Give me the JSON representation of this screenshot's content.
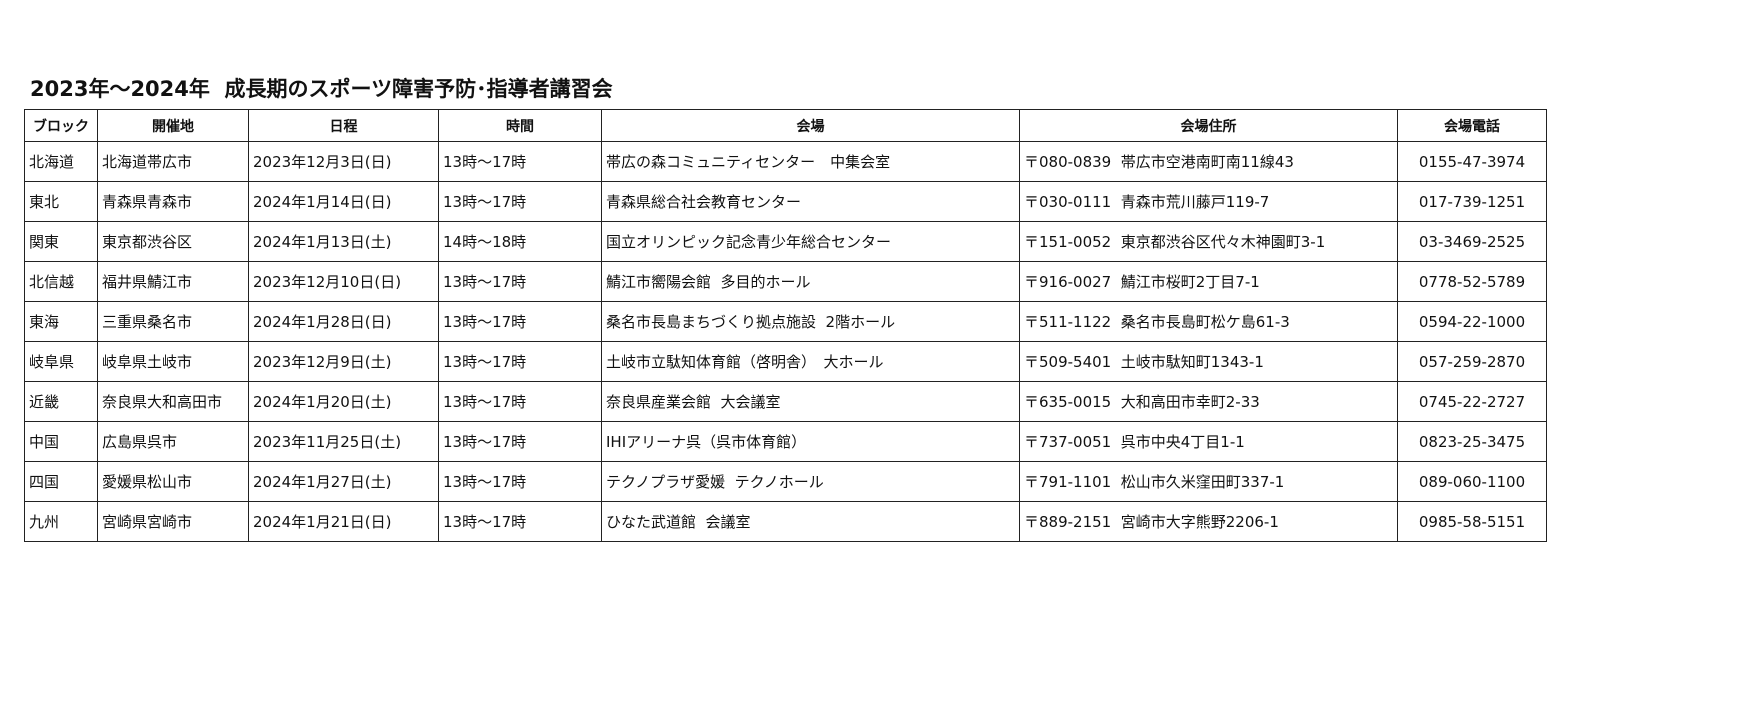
{
  "title": "2023年～2024年  成長期のスポーツ障害予防･指導者講習会",
  "columns": [
    "ブロック",
    "開催地",
    "日程",
    "時間",
    "会場",
    "会場住所",
    "会場電話"
  ],
  "rows": [
    [
      "北海道",
      "北海道帯広市",
      "2023年12月3日(日)",
      "13時～17時",
      "帯広の森コミュニティセンター　中集会室",
      "〒080-0839  帯広市空港南町南11線43",
      "0155-47-3974"
    ],
    [
      "東北",
      "青森県青森市",
      "2024年1月14日(日)",
      "13時～17時",
      "青森県総合社会教育センター",
      "〒030-0111  青森市荒川藤戸119-7",
      "017-739-1251"
    ],
    [
      "関東",
      "東京都渋谷区",
      "2024年1月13日(土)",
      "14時～18時",
      "国立オリンピック記念青少年総合センター",
      "〒151-0052  東京都渋谷区代々木神園町3-1",
      "03-3469-2525"
    ],
    [
      "北信越",
      "福井県鯖江市",
      "2023年12月10日(日)",
      "13時～17時",
      "鯖江市嚮陽会館  多目的ホール",
      "〒916-0027  鯖江市桜町2丁目7-1",
      "0778-52-5789"
    ],
    [
      "東海",
      "三重県桑名市",
      "2024年1月28日(日)",
      "13時～17時",
      "桑名市長島まちづくり拠点施設  2階ホール",
      "〒511-1122  桑名市長島町松ケ島61-3",
      "0594-22-1000"
    ],
    [
      "岐阜県",
      "岐阜県土岐市",
      "2023年12月9日(土)",
      "13時～17時",
      "土岐市立駄知体育館（啓明舎）　大ホール",
      "〒509-5401  土岐市駄知町1343-1",
      "057-259-2870"
    ],
    [
      "近畿",
      "奈良県大和高田市",
      "2024年1月20日(土)",
      "13時～17時",
      "奈良県産業会館  大会議室",
      "〒635-0015  大和高田市幸町2-33",
      "0745-22-2727"
    ],
    [
      "中国",
      "広島県呉市",
      "2023年11月25日(土)",
      "13時～17時",
      "IHIアリーナ呉（呉市体育館）",
      "〒737-0051  呉市中央4丁目1-1",
      "0823-25-3475"
    ],
    [
      "四国",
      "愛媛県松山市",
      "2024年1月27日(土)",
      "13時～17時",
      "テクノプラザ愛媛  テクノホール",
      "〒791-1101  松山市久米窪田町337-1",
      "089-060-1100"
    ],
    [
      "九州",
      "宮崎県宮崎市",
      "2024年1月21日(日)",
      "13時～17時",
      "ひなた武道館  会議室",
      "〒889-2151  宮崎市大字熊野2206-1",
      "0985-58-5151"
    ]
  ]
}
